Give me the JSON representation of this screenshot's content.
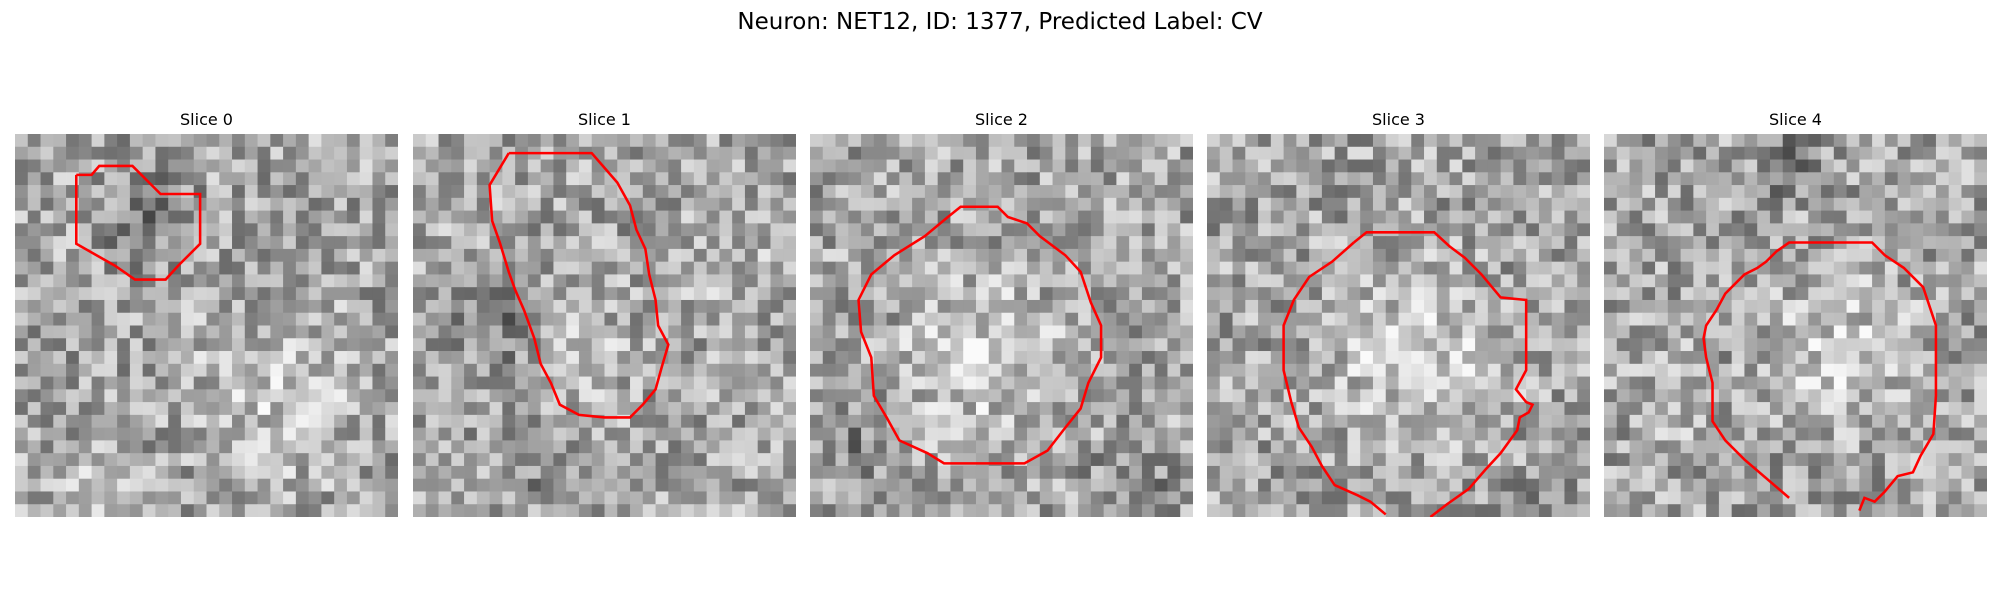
{
  "figure": {
    "title": "Neuron: NET12, ID: 1377, Predicted Label: CV"
  },
  "panels": [
    {
      "label": "Slice 0"
    },
    {
      "label": "Slice 1"
    },
    {
      "label": "Slice 2"
    },
    {
      "label": "Slice 3"
    },
    {
      "label": "Slice 4"
    }
  ],
  "colors": {
    "outline": "#ff0000",
    "background": "#ffffff"
  }
}
